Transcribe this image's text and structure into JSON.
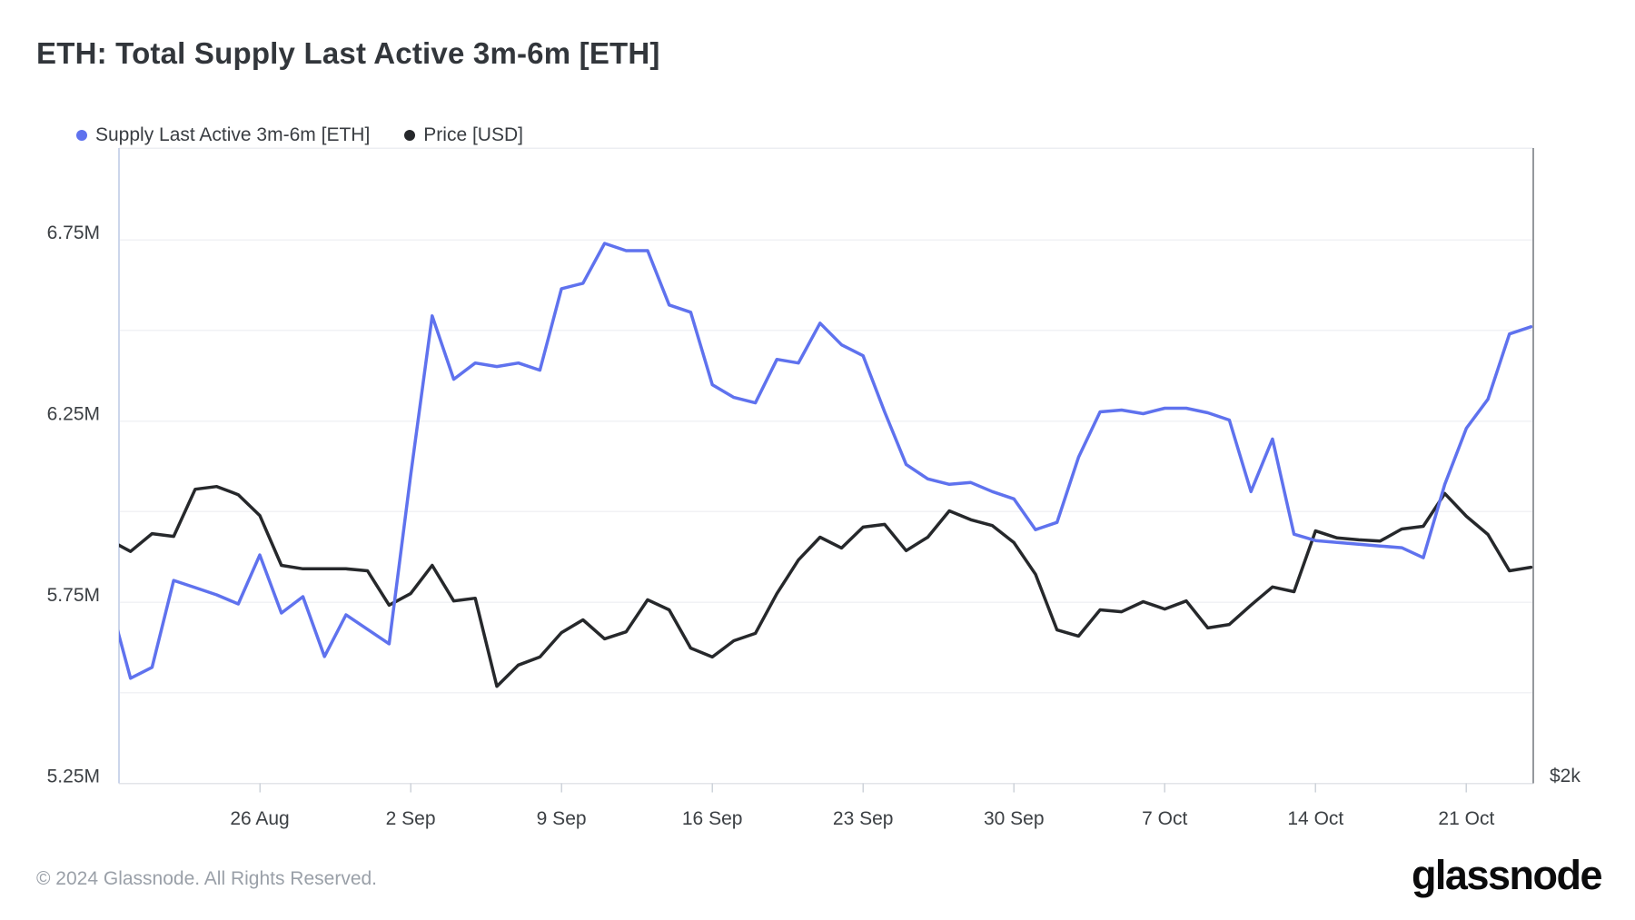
{
  "header": {
    "title": "ETH: Total Supply Last Active 3m-6m [ETH]"
  },
  "legend": [
    {
      "label": "Supply Last Active 3m-6m [ETH]",
      "color": "#5f72ee"
    },
    {
      "label": "Price [USD]",
      "color": "#26282b"
    }
  ],
  "footer": {
    "copyright": "© 2024 Glassnode. All Rights Reserved.",
    "brand": "glassnode"
  },
  "chart_data": {
    "type": "line",
    "title": "ETH: Total Supply Last Active 3m-6m [ETH]",
    "grid": "horizontal-only",
    "legend_position": "top-left",
    "x_dates": [
      "19 Aug",
      "20 Aug",
      "21 Aug",
      "22 Aug",
      "23 Aug",
      "24 Aug",
      "25 Aug",
      "26 Aug",
      "27 Aug",
      "28 Aug",
      "29 Aug",
      "30 Aug",
      "31 Aug",
      "1 Sep",
      "2 Sep",
      "3 Sep",
      "4 Sep",
      "5 Sep",
      "6 Sep",
      "7 Sep",
      "8 Sep",
      "9 Sep",
      "10 Sep",
      "11 Sep",
      "12 Sep",
      "13 Sep",
      "14 Sep",
      "15 Sep",
      "16 Sep",
      "17 Sep",
      "18 Sep",
      "19 Sep",
      "20 Sep",
      "21 Sep",
      "22 Sep",
      "23 Sep",
      "24 Sep",
      "25 Sep",
      "26 Sep",
      "27 Sep",
      "28 Sep",
      "29 Sep",
      "30 Sep",
      "1 Oct",
      "2 Oct",
      "3 Oct",
      "4 Oct",
      "5 Oct",
      "6 Oct",
      "7 Oct",
      "8 Oct",
      "9 Oct",
      "10 Oct",
      "11 Oct",
      "12 Oct",
      "13 Oct",
      "14 Oct",
      "15 Oct",
      "16 Oct",
      "17 Oct",
      "18 Oct",
      "19 Oct",
      "20 Oct",
      "21 Oct",
      "22 Oct",
      "23 Oct",
      "24 Oct"
    ],
    "series": [
      {
        "name": "Supply Last Active 3m-6m [ETH]",
        "unit": "million ETH",
        "color": "#5f72ee",
        "values": [
          5.76,
          5.54,
          5.57,
          5.81,
          5.79,
          5.77,
          5.745,
          5.88,
          5.72,
          5.765,
          5.6,
          5.715,
          5.675,
          5.635,
          6.1,
          6.54,
          6.365,
          6.41,
          6.4,
          6.41,
          6.39,
          6.615,
          6.63,
          6.74,
          6.72,
          6.72,
          6.57,
          6.55,
          6.35,
          6.315,
          6.3,
          6.42,
          6.41,
          6.52,
          6.46,
          6.43,
          6.275,
          6.13,
          6.09,
          6.075,
          6.08,
          6.055,
          6.035,
          5.95,
          5.97,
          6.15,
          6.275,
          6.28,
          6.27,
          6.285,
          6.285,
          6.2725,
          6.2525,
          6.055,
          6.2,
          5.9375,
          5.92,
          5.915,
          5.91,
          5.905,
          5.9,
          5.8725,
          6.075,
          6.23,
          6.31,
          6.49,
          6.51
        ]
      },
      {
        "name": "Price [USD]",
        "unit": "USD",
        "color": "#26282b",
        "values": [
          2630,
          2600,
          2646,
          2639,
          2761,
          2768,
          2747,
          2693,
          2564,
          2555,
          2555,
          2555,
          2550,
          2461,
          2491,
          2564,
          2472,
          2479,
          2251,
          2306,
          2327,
          2390,
          2423,
          2374,
          2392,
          2475,
          2449,
          2350,
          2327,
          2369,
          2388,
          2491,
          2578,
          2637,
          2609,
          2663,
          2670,
          2602,
          2637,
          2705,
          2682,
          2667,
          2623,
          2541,
          2397,
          2381,
          2449,
          2444,
          2470,
          2451,
          2472,
          2402,
          2411,
          2461,
          2508,
          2496,
          2653,
          2635,
          2630,
          2627,
          2658,
          2665,
          2750,
          2691,
          2644,
          2550,
          2559
        ]
      }
    ],
    "y_axis_left": {
      "title": "",
      "tick_labels": [
        "6.75M",
        "6.25M",
        "5.75M",
        "5.25M"
      ],
      "tick_values": [
        6.75,
        6.25,
        5.75,
        5.25
      ],
      "gridline_values": [
        6.75,
        6.5,
        6.25,
        6.0,
        5.75,
        5.5
      ],
      "range": [
        5.25,
        7.0
      ]
    },
    "y_axis_right": {
      "title": "",
      "tick_labels": [
        "$2k"
      ],
      "tick_values": [
        2000
      ],
      "range": [
        2000,
        3645
      ]
    },
    "x_axis": {
      "tick_labels": [
        "26 Aug",
        "2 Sep",
        "9 Sep",
        "16 Sep",
        "23 Sep",
        "30 Sep",
        "7 Oct",
        "14 Oct",
        "21 Oct"
      ],
      "tick_date_indices": [
        7,
        14,
        21,
        28,
        35,
        42,
        49,
        56,
        63
      ]
    }
  }
}
